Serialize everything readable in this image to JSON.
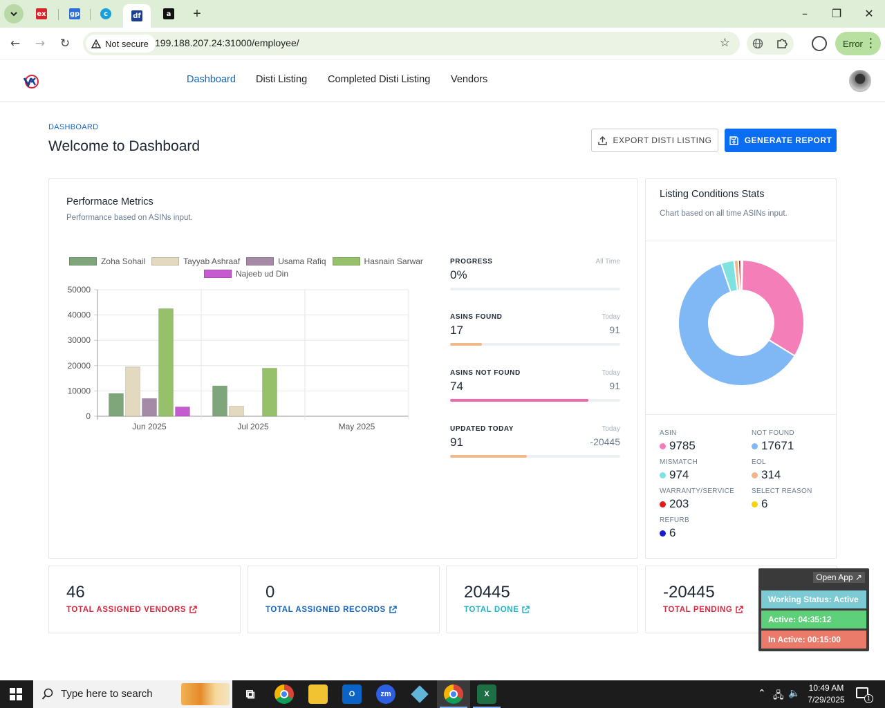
{
  "browser": {
    "tabs": [
      {
        "icon": "ex",
        "color": "#d6242b"
      },
      {
        "icon": "gp",
        "color": "#2a6ddb"
      },
      {
        "icon": "c",
        "color": "#1aa0d8"
      },
      {
        "icon": "df",
        "color": "#1d3f8f"
      },
      {
        "icon": "a",
        "color": "#111111"
      }
    ],
    "security": "Not secure",
    "url": "199.188.207.24:31000/employee/",
    "error_chip": "Error"
  },
  "nav": {
    "links": [
      "Dashboard",
      "Disti Listing",
      "Completed Disti Listing",
      "Vendors"
    ]
  },
  "page": {
    "breadcrumb": "DASHBOARD",
    "title": "Welcome to Dashboard",
    "export_button": "EXPORT DISTI LISTING",
    "report_button": "GENERATE REPORT"
  },
  "performance": {
    "title": "Performace Metrics",
    "subtitle": "Performance based on ASINs input."
  },
  "chart_data": {
    "type": "bar",
    "categories": [
      "Jun 2025",
      "Jul 2025",
      "May 2025"
    ],
    "series": [
      {
        "name": "Zoha Sohail",
        "color": "#7fa57a",
        "values": [
          9000,
          12000,
          0
        ]
      },
      {
        "name": "Tayyab Ashraaf",
        "color": "#e2d9bf",
        "values": [
          19500,
          4000,
          0
        ]
      },
      {
        "name": "Usama Rafiq",
        "color": "#a48aa6",
        "values": [
          7000,
          0,
          0
        ]
      },
      {
        "name": "Hasnain Sarwar",
        "color": "#97c06a",
        "values": [
          42500,
          19000,
          0
        ]
      },
      {
        "name": "Najeeb ud Din",
        "color": "#c65ad0",
        "values": [
          3700,
          0,
          0
        ]
      }
    ],
    "yticks": [
      0,
      10000,
      20000,
      30000,
      40000,
      50000
    ],
    "ylim": [
      0,
      50000
    ],
    "grid": true,
    "legend": "top"
  },
  "metrics": [
    {
      "label": "PROGRESS",
      "period": "All Time",
      "value": "0%",
      "right": "",
      "fill": 0,
      "color": "#f0b98a"
    },
    {
      "label": "ASINS FOUND",
      "period": "Today",
      "value": "17",
      "right": "91",
      "fill": 0.187,
      "color": "#f0b98a"
    },
    {
      "label": "ASINS NOT FOUND",
      "period": "Today",
      "value": "74",
      "right": "91",
      "fill": 0.813,
      "color": "#f06aa7"
    },
    {
      "label": "UPDATED TODAY",
      "period": "Today",
      "value": "91",
      "right": "-20445",
      "fill": 0.45,
      "color": "#f0b98a"
    }
  ],
  "conditions": {
    "title": "Listing Conditions Stats",
    "subtitle": "Chart based on all time ASINs input.",
    "stats": [
      {
        "head": "ASIN",
        "value": "9785",
        "color": "#f47eb8"
      },
      {
        "head": "NOT FOUND",
        "value": "17671",
        "color": "#7fb8f5"
      },
      {
        "head": "MISMATCH",
        "value": "974",
        "color": "#7ee3e0"
      },
      {
        "head": "EOL",
        "value": "314",
        "color": "#f4b48a"
      },
      {
        "head": "WARRANTY/SERVICE",
        "value": "203",
        "color": "#e31a1a"
      },
      {
        "head": "SELECT REASON",
        "value": "6",
        "color": "#f5d20a"
      },
      {
        "head": "REFURB",
        "value": "6",
        "color": "#1a1ad6"
      }
    ]
  },
  "kpis": [
    {
      "value": "46",
      "label": "TOTAL ASSIGNED VENDORS",
      "color": "#d9273e"
    },
    {
      "value": "0",
      "label": "TOTAL ASSIGNED RECORDS",
      "color": "#1565c0"
    },
    {
      "value": "20445",
      "label": "TOTAL DONE",
      "color": "#1bb5c9"
    },
    {
      "value": "-20445",
      "label": "TOTAL PENDING",
      "color": "#d9273e"
    }
  ],
  "widget": {
    "open_app": "Open App ↗",
    "status": "Working Status: Active",
    "active": "Active: 04:35:12",
    "inactive": "In Active: 00:15:00"
  },
  "taskbar": {
    "search_placeholder": "Type here to search",
    "time": "10:49 AM",
    "date": "7/29/2025",
    "notification_count": "1"
  }
}
